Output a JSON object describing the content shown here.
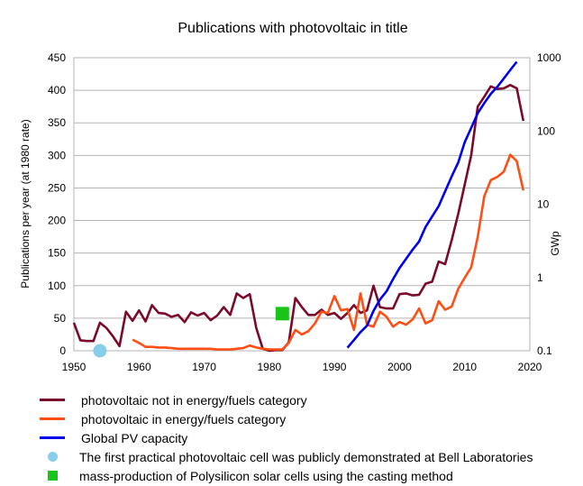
{
  "chart_data": {
    "type": "line",
    "title": "Publications with photovoltaic in title",
    "xlabel": "",
    "ylabel": "Publications per year (at 1980 rate)",
    "y2label": "GWp",
    "xlim": [
      1950,
      2020
    ],
    "ylim": [
      0,
      450
    ],
    "y2lim": [
      0.1,
      1000
    ],
    "y2scale": "log",
    "grid": "horizontal",
    "legend_position": "bottom",
    "x_ticks": [
      "1950",
      "1960",
      "1970",
      "1980",
      "1990",
      "2000",
      "2010",
      "2020"
    ],
    "y_ticks": [
      "0",
      "50",
      "100",
      "150",
      "200",
      "250",
      "300",
      "350",
      "400",
      "450"
    ],
    "y2_ticks": [
      "0.1",
      "1",
      "10",
      "100",
      "1000"
    ],
    "series": [
      {
        "name": "photovoltaic not in energy/fuels category",
        "color": "#7b0a2a",
        "axis": "left",
        "x": [
          1950,
          1951,
          1952,
          1953,
          1954,
          1955,
          1956,
          1957,
          1958,
          1959,
          1960,
          1961,
          1962,
          1963,
          1964,
          1965,
          1966,
          1967,
          1968,
          1969,
          1970,
          1971,
          1972,
          1973,
          1974,
          1975,
          1976,
          1977,
          1978,
          1979,
          1980,
          1981,
          1982,
          1983,
          1984,
          1985,
          1986,
          1987,
          1988,
          1989,
          1990,
          1991,
          1992,
          1993,
          1994,
          1995,
          1996,
          1997,
          1998,
          1999,
          2000,
          2001,
          2002,
          2003,
          2004,
          2005,
          2006,
          2007,
          2008,
          2009,
          2010,
          2011,
          2012,
          2013,
          2014,
          2015,
          2016,
          2017,
          2018,
          2019
        ],
        "values": [
          43,
          16,
          15,
          15,
          43,
          35,
          22,
          7,
          60,
          46,
          62,
          45,
          70,
          58,
          57,
          52,
          55,
          44,
          59,
          54,
          58,
          47,
          54,
          67,
          55,
          88,
          81,
          87,
          35,
          3,
          0,
          1,
          1,
          13,
          81,
          67,
          55,
          55,
          63,
          55,
          58,
          49,
          58,
          70,
          58,
          62,
          100,
          67,
          65,
          65,
          87,
          88,
          85,
          86,
          103,
          106,
          137,
          133,
          170,
          210,
          255,
          300,
          375,
          390,
          406,
          402,
          403,
          408,
          403,
          353
        ]
      },
      {
        "name": "photovoltaic in energy/fuels category",
        "color": "#ff4e14",
        "axis": "left",
        "x": [
          1959,
          1960,
          1961,
          1962,
          1963,
          1964,
          1965,
          1966,
          1967,
          1968,
          1969,
          1970,
          1971,
          1972,
          1973,
          1974,
          1975,
          1976,
          1977,
          1978,
          1979,
          1980,
          1981,
          1982,
          1983,
          1984,
          1985,
          1986,
          1987,
          1988,
          1989,
          1990,
          1991,
          1992,
          1993,
          1994,
          1995,
          1996,
          1997,
          1998,
          1999,
          2000,
          2001,
          2002,
          2003,
          2004,
          2005,
          2006,
          2007,
          2008,
          2009,
          2010,
          2011,
          2012,
          2013,
          2014,
          2015,
          2016,
          2017,
          2018,
          2019
        ],
        "values": [
          17,
          12,
          6,
          6,
          5,
          5,
          4,
          3,
          3,
          3,
          3,
          3,
          3,
          2,
          2,
          2,
          3,
          4,
          8,
          5,
          3,
          2,
          2,
          2,
          12,
          32,
          25,
          30,
          42,
          60,
          58,
          84,
          62,
          64,
          32,
          88,
          40,
          37,
          60,
          52,
          37,
          44,
          40,
          48,
          65,
          42,
          47,
          76,
          63,
          68,
          95,
          112,
          128,
          175,
          237,
          262,
          267,
          275,
          301,
          291,
          246
        ]
      },
      {
        "name": "Global PV capacity",
        "color": "#0000ee",
        "axis": "right",
        "x": [
          1992,
          1993,
          1994,
          1995,
          1996,
          1997,
          1998,
          1999,
          2000,
          2001,
          2002,
          2003,
          2004,
          2005,
          2006,
          2007,
          2008,
          2009,
          2010,
          2011,
          2012,
          2013,
          2014,
          2015,
          2016,
          2017,
          2018
        ],
        "values": [
          0.11,
          0.14,
          0.18,
          0.22,
          0.35,
          0.5,
          0.65,
          0.95,
          1.35,
          1.8,
          2.4,
          3.1,
          4.9,
          6.8,
          9.4,
          15,
          24,
          37,
          70,
          110,
          175,
          240,
          320,
          400,
          520,
          680,
          880
        ]
      }
    ],
    "markers": [
      {
        "name": "The first practical photovoltaic cell was publicly demonstrated at Bell Laboratories",
        "x": 1954,
        "y": 0,
        "shape": "circle",
        "color": "#87ceeb"
      },
      {
        "name": "mass-production of Polysilicon solar cells using the casting method",
        "x": 1982,
        "y": 57,
        "shape": "square",
        "color": "#19c419"
      }
    ]
  }
}
